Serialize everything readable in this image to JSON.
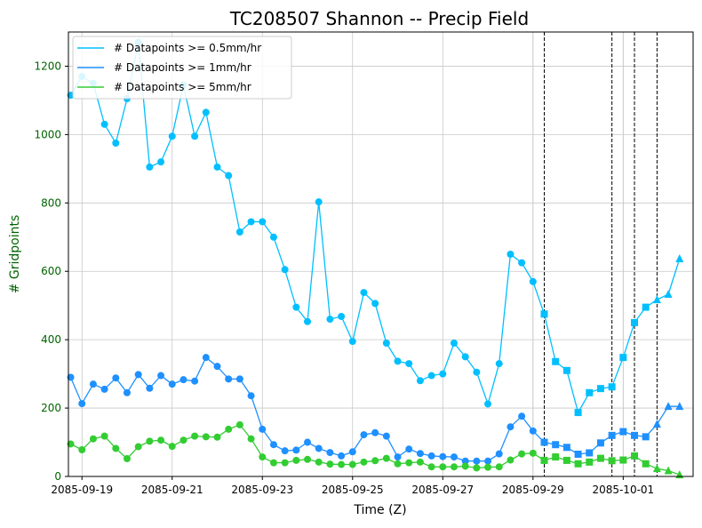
{
  "chart_data": {
    "type": "line",
    "title": "TC208507 Shannon -- Precip Field",
    "xlabel": "Time (Z)",
    "ylabel": "# Gridpoints",
    "ylim": [
      0,
      1300
    ],
    "grid": true,
    "legend_position": "top-left",
    "x_tick_labels": [
      "2085-09-19",
      "2085-09-21",
      "2085-09-23",
      "2085-09-25",
      "2085-09-27",
      "2085-09-29",
      "2085-10-01"
    ],
    "x_tick_days": [
      0,
      2,
      4,
      6,
      8,
      10,
      12
    ],
    "y_ticks": [
      0,
      200,
      400,
      600,
      800,
      1000,
      1200
    ],
    "x_range_days": [
      -0.3,
      13.55
    ],
    "vlines_days": [
      10.25,
      11.75,
      12.25,
      12.75
    ],
    "extra_vgrid_days": [
      10,
      12
    ],
    "marker_switch_days": [
      10.25,
      12.75
    ],
    "x_days": [
      -0.25,
      0,
      0.25,
      0.5,
      0.75,
      1,
      1.25,
      1.5,
      1.75,
      2,
      2.25,
      2.5,
      2.75,
      3,
      3.25,
      3.5,
      3.75,
      4,
      4.25,
      4.5,
      4.75,
      5,
      5.25,
      5.5,
      5.75,
      6,
      6.25,
      6.5,
      6.75,
      7,
      7.25,
      7.5,
      7.75,
      8,
      8.25,
      8.5,
      8.75,
      9,
      9.25,
      9.5,
      9.75,
      10,
      10.25,
      10.5,
      10.75,
      11,
      11.25,
      11.5,
      11.75,
      12,
      12.25,
      12.5,
      12.75,
      13,
      13.25
    ],
    "series": [
      {
        "name": "# Datapoints >= 0.5mm/hr",
        "color": "#00bfff",
        "values": [
          1115,
          1170,
          1150,
          1030,
          975,
          1105,
          1270,
          905,
          920,
          995,
          1145,
          995,
          1065,
          905,
          880,
          715,
          745,
          745,
          700,
          605,
          495,
          453,
          803,
          460,
          468,
          395,
          538,
          506,
          390,
          337,
          330,
          280,
          295,
          300,
          390,
          350,
          305,
          212,
          330,
          650,
          625,
          570,
          475,
          336,
          310,
          187,
          245,
          257,
          262,
          348,
          450,
          495,
          517,
          533,
          637
        ]
      },
      {
        "name": "# Datapoints >= 1mm/hr",
        "color": "#1e90ff",
        "values": [
          290,
          213,
          270,
          255,
          288,
          245,
          298,
          258,
          295,
          270,
          283,
          279,
          348,
          322,
          285,
          285,
          236,
          138,
          93,
          75,
          77,
          100,
          82,
          70,
          60,
          72,
          122,
          128,
          118,
          57,
          80,
          67,
          60,
          58,
          57,
          45,
          45,
          45,
          66,
          145,
          176,
          133,
          100,
          93,
          85,
          65,
          69,
          98,
          120,
          131,
          120,
          116,
          153,
          205,
          205
        ]
      },
      {
        "name": "# Datapoints >= 5mm/hr",
        "color": "#32cd32",
        "values": [
          95,
          78,
          110,
          118,
          82,
          52,
          87,
          103,
          106,
          88,
          106,
          118,
          116,
          115,
          138,
          151,
          110,
          57,
          40,
          40,
          47,
          50,
          42,
          36,
          35,
          35,
          42,
          46,
          53,
          37,
          40,
          42,
          28,
          28,
          28,
          30,
          25,
          27,
          28,
          48,
          66,
          68,
          47,
          57,
          47,
          37,
          42,
          53,
          46,
          48,
          60,
          37,
          23,
          17,
          5
        ]
      }
    ]
  }
}
